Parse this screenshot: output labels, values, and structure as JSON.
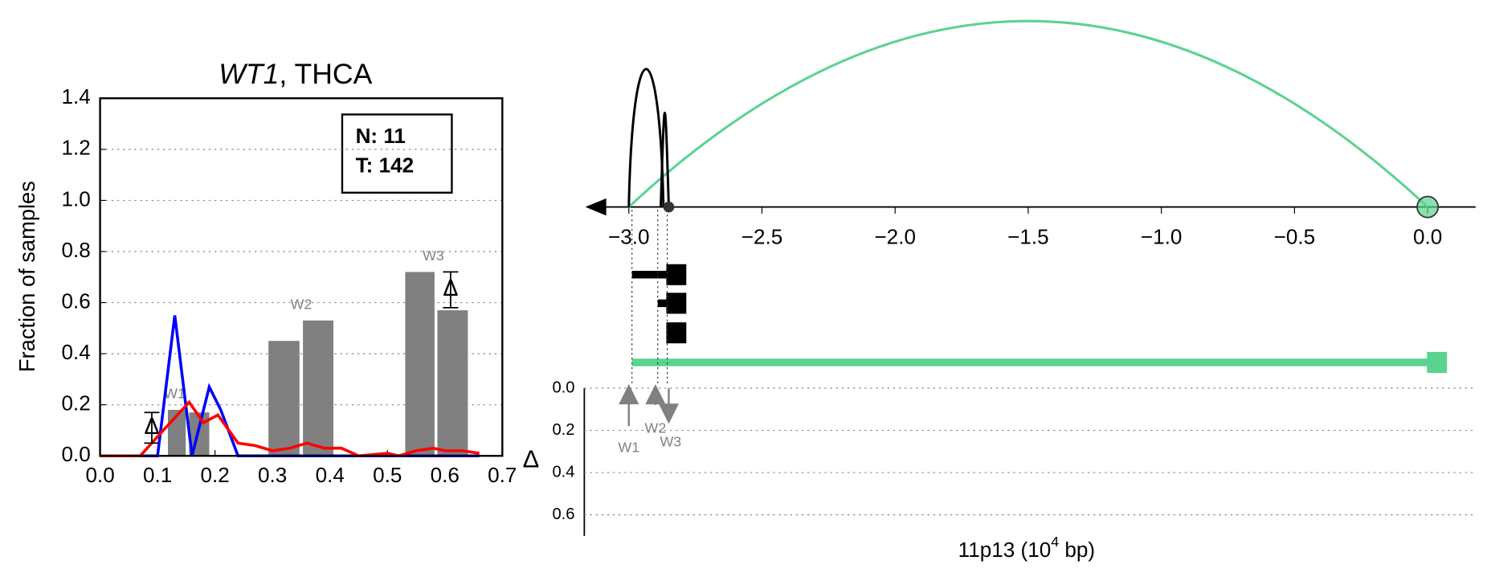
{
  "chart_data": [
    {
      "type": "window-hist",
      "title_gene": "WT1",
      "title_rest": ", THCA",
      "ylabel": "Fraction of samples",
      "xlim": [
        0,
        0.7
      ],
      "ylim": [
        0,
        1.4
      ],
      "xticks": [
        {
          "value": 0,
          "label": "0.0"
        },
        0.1,
        0.2,
        0.3,
        0.4,
        0.5,
        0.6,
        0.7
      ],
      "yticks": [
        {
          "value": 0,
          "label": "0.0"
        },
        0.2,
        0.4,
        0.6,
        0.8,
        {
          "value": 1,
          "label": "1.0"
        },
        1.2,
        1.4
      ],
      "grid": true,
      "legend_lines": [
        "N: 11",
        "T: 142"
      ],
      "bar_color": "#808080",
      "bar_edges": [
        [
          0.118,
          0.149
        ],
        [
          0.155,
          0.19
        ],
        [
          0.293,
          0.347
        ],
        [
          0.353,
          0.406
        ],
        [
          0.531,
          0.582
        ],
        [
          0.587,
          0.64
        ]
      ],
      "bar_values": [
        0.18,
        0.17,
        0.45,
        0.53,
        0.72,
        0.57
      ],
      "window_labels": [
        "W1",
        "W2",
        "W3"
      ],
      "window_label_x": [
        0.13,
        0.35,
        0.58
      ],
      "window_label_y": [
        0.24,
        0.59,
        0.78
      ],
      "delta_symbol": "Δ",
      "delta_x": [
        0.09,
        0.61
      ],
      "delta_y": [
        0.11,
        0.65
      ],
      "delta_err": [
        0.06,
        0.07
      ],
      "series": [
        {
          "color": "#0000ff",
          "x": [
            0,
            0.03,
            0.06,
            0.1,
            0.13,
            0.16,
            0.19,
            0.21,
            0.24,
            0.3,
            0.4,
            0.5,
            0.6,
            0.66
          ],
          "values": [
            0,
            0,
            0,
            0,
            0.55,
            0,
            0.27,
            0.18,
            0,
            0,
            0,
            0,
            0,
            0
          ]
        },
        {
          "color": "#ff0000",
          "x": [
            0,
            0.07,
            0.11,
            0.155,
            0.18,
            0.205,
            0.24,
            0.27,
            0.3,
            0.33,
            0.36,
            0.39,
            0.42,
            0.45,
            0.5,
            0.52,
            0.55,
            0.58,
            0.6,
            0.63,
            0.66
          ],
          "values": [
            0,
            0,
            0.1,
            0.21,
            0.13,
            0.16,
            0.05,
            0.04,
            0.02,
            0.03,
            0.05,
            0.03,
            0.03,
            0,
            0.01,
            0,
            0.02,
            0.03,
            0.02,
            0.02,
            0.01
          ]
        }
      ]
    },
    {
      "type": "arcs",
      "xlim": [
        -3.16,
        0.18
      ],
      "xticks": [
        {
          "value": -3,
          "label": "−3.0"
        },
        {
          "value": -2.5,
          "label": "−2.5"
        },
        {
          "value": -2,
          "label": "−2.0"
        },
        {
          "value": -1.5,
          "label": "−1.5"
        },
        {
          "value": -1,
          "label": "−1.0"
        },
        {
          "value": -0.5,
          "label": "−0.5"
        },
        {
          "value": 0,
          "label": "0.0"
        }
      ],
      "arc_starts": [
        -3.0,
        -3.0,
        -2.88
      ],
      "arc_ends": [
        0.0,
        -2.87,
        -2.85
      ],
      "arc_colors": [
        "#5ad38f",
        "#000000",
        "#000000"
      ],
      "points": [
        0.0,
        -2.85
      ],
      "point_colors": [
        "#5ad38f",
        "#333333"
      ]
    },
    {
      "type": "arrows",
      "ylabel": "Δ",
      "ylim": [
        0,
        0.7
      ],
      "yticks": [
        {
          "value": 0,
          "label": "0.0"
        },
        0.2,
        0.4,
        0.6
      ],
      "grid": true,
      "xlabel_parts": [
        "11p13 (10",
        "4",
        " bp)"
      ],
      "windows": [
        "W1",
        "W2",
        "W3"
      ],
      "positions": [
        -3.0,
        -2.9,
        -2.85
      ],
      "deltas": [
        0.18,
        0.08,
        0.15
      ],
      "directions": [
        "up",
        "up",
        "down"
      ],
      "color": "#808080"
    }
  ]
}
